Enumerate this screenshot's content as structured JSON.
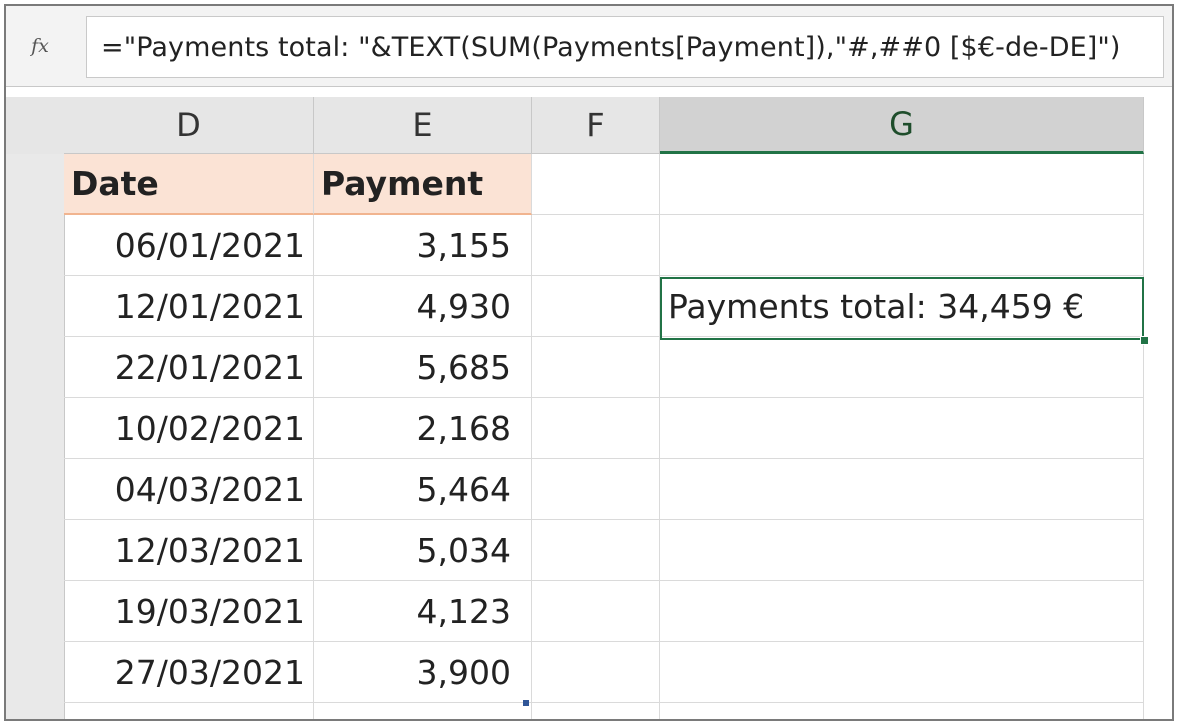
{
  "formula_bar": {
    "fx_label": "fx",
    "formula": "=\"Payments total: \"&TEXT(SUM(Payments[Payment]),\"#,##0 [$€-de-DE]\")"
  },
  "columns": [
    {
      "letter": "D"
    },
    {
      "letter": "E"
    },
    {
      "letter": "F"
    },
    {
      "letter": "G",
      "active": true
    }
  ],
  "table": {
    "headers": [
      "Date",
      "Payment"
    ],
    "rows": [
      {
        "date": "06/01/2021",
        "payment": "3,155"
      },
      {
        "date": "12/01/2021",
        "payment": "4,930"
      },
      {
        "date": "22/01/2021",
        "payment": "5,685"
      },
      {
        "date": "10/02/2021",
        "payment": "2,168"
      },
      {
        "date": "04/03/2021",
        "payment": "5,464"
      },
      {
        "date": "12/03/2021",
        "payment": "5,034"
      },
      {
        "date": "19/03/2021",
        "payment": "4,123"
      },
      {
        "date": "27/03/2021",
        "payment": "3,900"
      }
    ]
  },
  "result_cell": {
    "text": "Payments total: 34,459 €"
  },
  "colors": {
    "header_fill": "#fbe3d5",
    "selection": "#217346"
  }
}
